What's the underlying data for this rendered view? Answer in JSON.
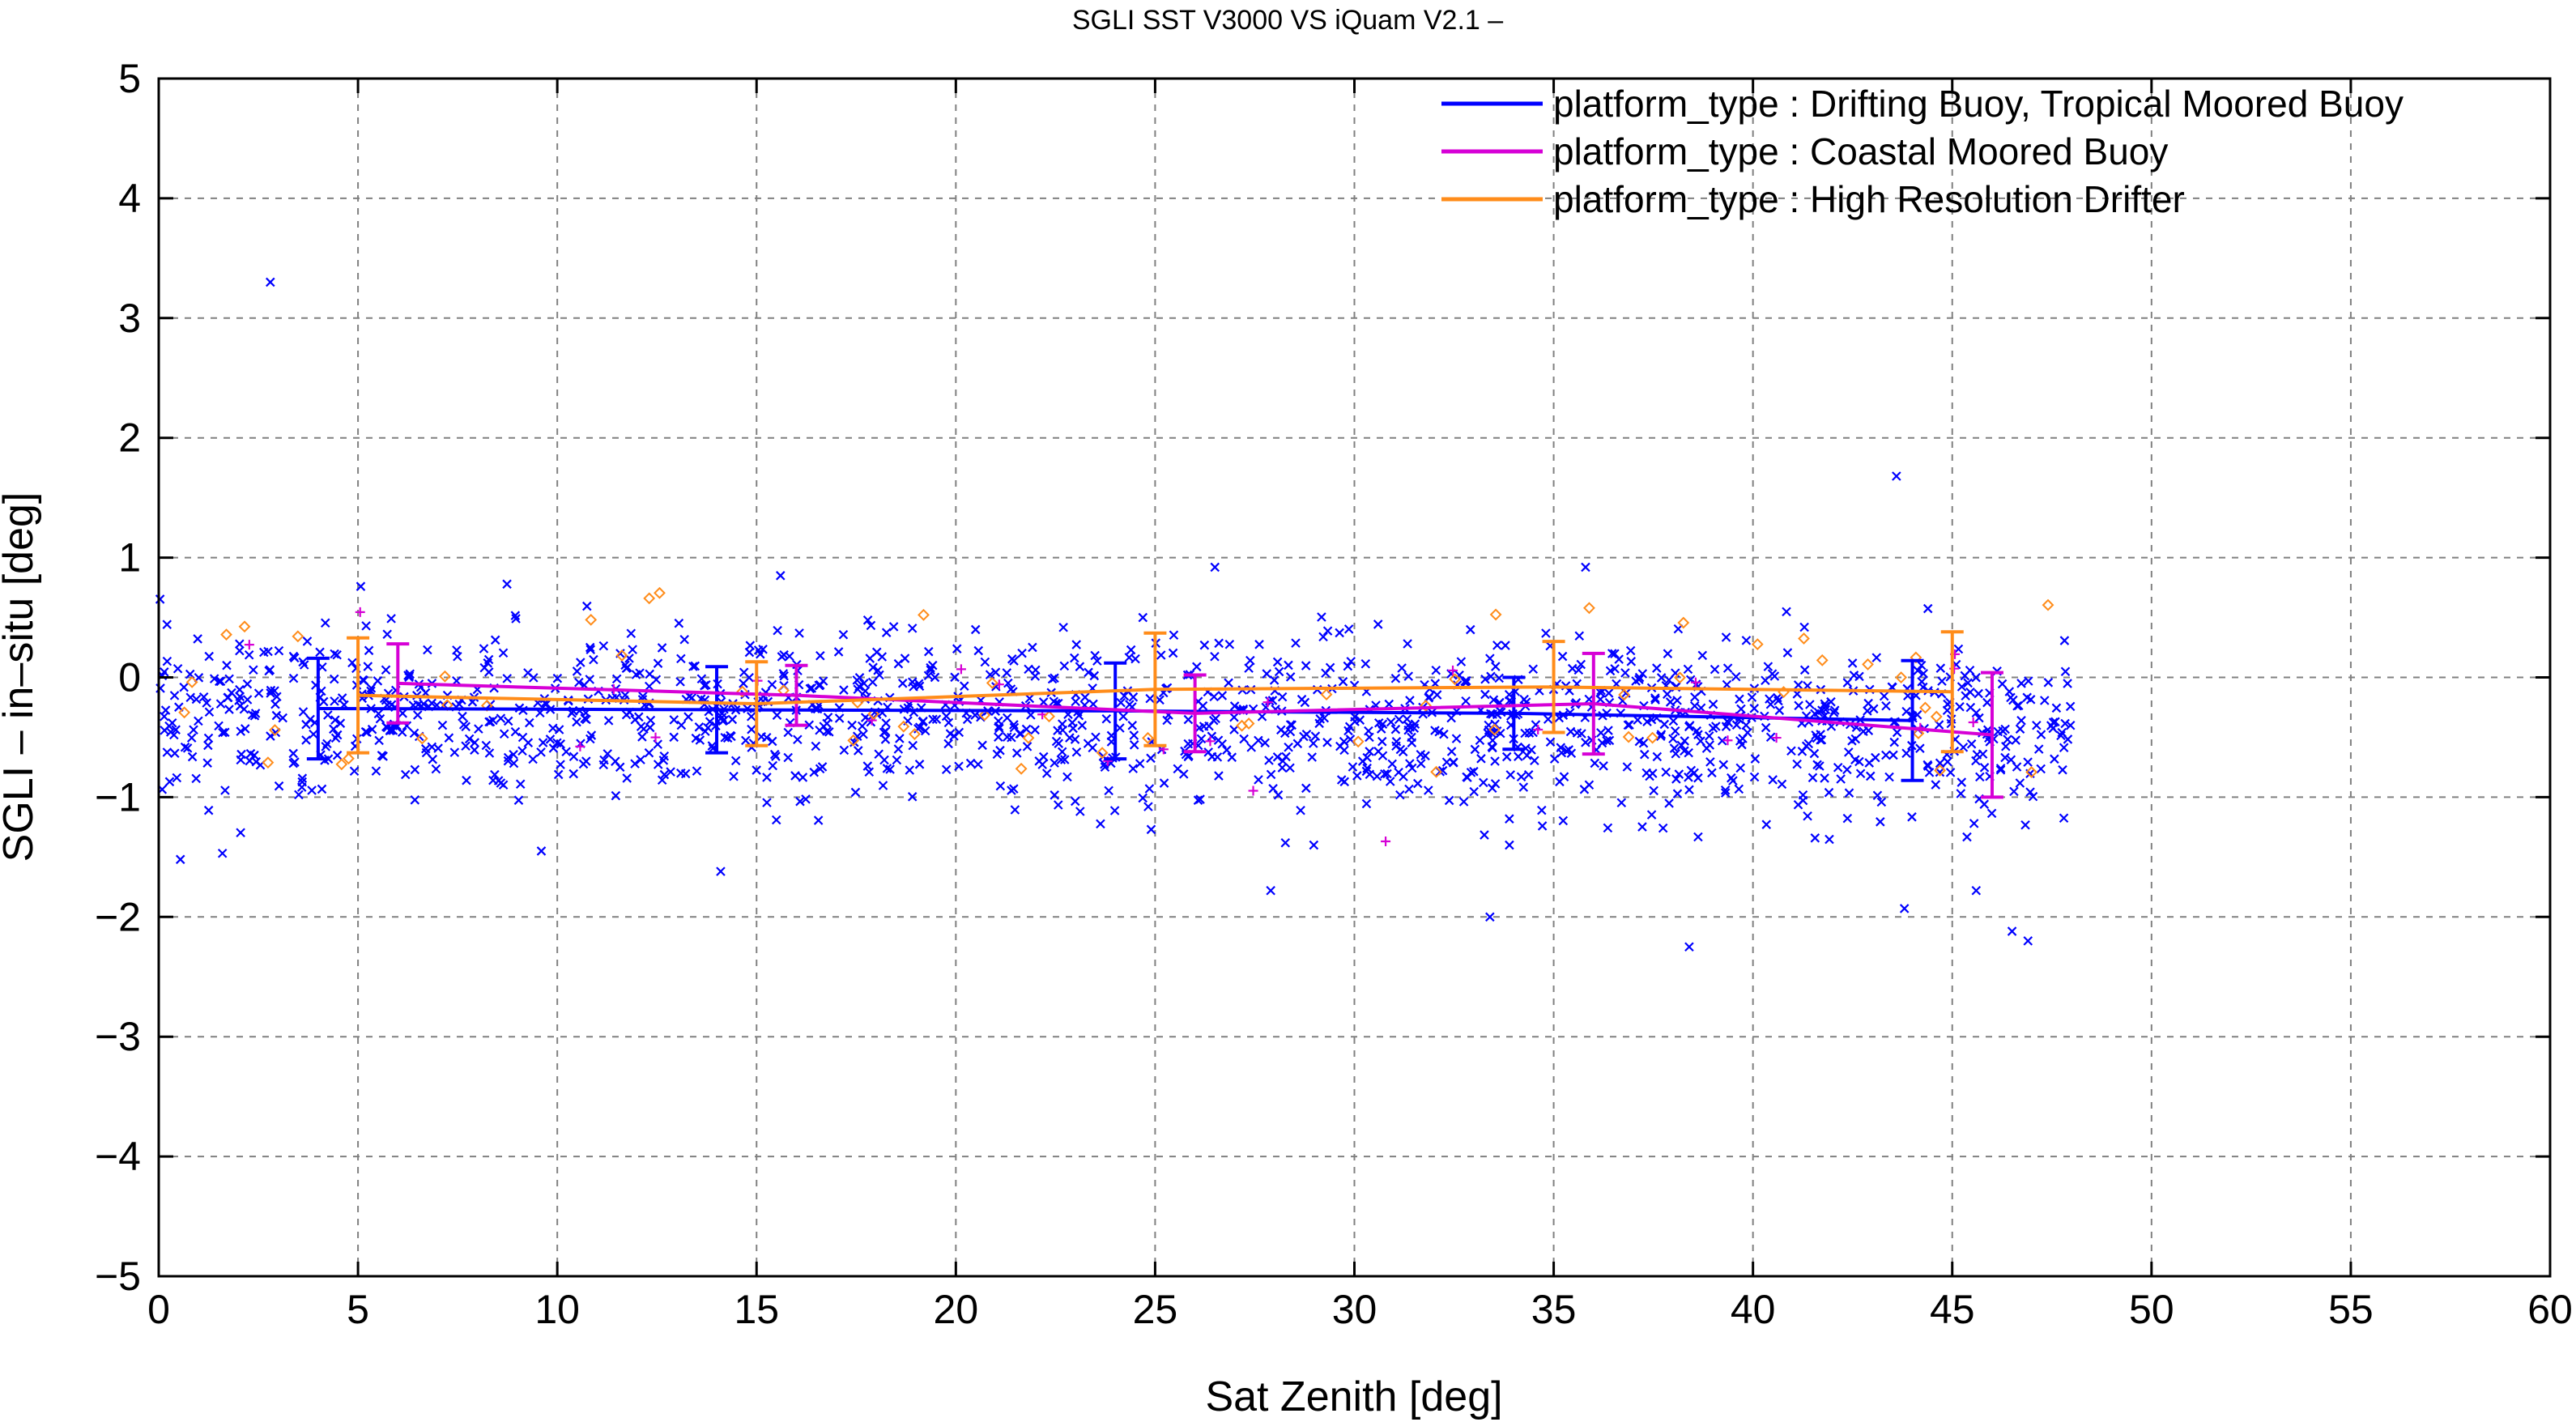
{
  "chart_data": {
    "type": "scatter",
    "title": "SGLI SST V3000 VS iQuam V2.1  –",
    "xlabel": "Sat Zenith [deg]",
    "ylabel": "SGLI – in–situ [deg]",
    "xlim": [
      0,
      60
    ],
    "ylim": [
      -5,
      5
    ],
    "x_ticks": [
      0,
      5,
      10,
      15,
      20,
      25,
      30,
      35,
      40,
      45,
      50,
      55,
      60
    ],
    "y_ticks": [
      -5,
      -4,
      -3,
      -2,
      -1,
      0,
      1,
      2,
      3,
      4,
      5
    ],
    "y_tick_labels": [
      "−5",
      "−4",
      "−3",
      "−2",
      "−1",
      "0",
      "1",
      "2",
      "3",
      "4",
      "5"
    ],
    "grid": true,
    "legend_position": "top-right",
    "series": [
      {
        "name": "platform_type : Drifting Buoy, Tropical Moored Buoy",
        "color": "#0000ff",
        "marker": "x",
        "mean_line": {
          "x": [
            4,
            14,
            24,
            34,
            44
          ],
          "y": [
            -0.26,
            -0.27,
            -0.28,
            -0.3,
            -0.36
          ],
          "std": [
            0.42,
            0.36,
            0.4,
            0.3,
            0.5
          ]
        },
        "scatter": {
          "x_range": [
            0,
            48
          ],
          "y_mean": -0.3,
          "y_spread": 0.35,
          "n_points": 1500
        },
        "outliers": [
          {
            "x": 2.8,
            "y": 3.3
          },
          {
            "x": 43.6,
            "y": 1.68
          },
          {
            "x": 38.4,
            "y": -2.25
          },
          {
            "x": 46.9,
            "y": -2.2
          },
          {
            "x": 14.1,
            "y": -1.62
          },
          {
            "x": 33.4,
            "y": -2.0
          },
          {
            "x": 27.9,
            "y": -1.78
          },
          {
            "x": 43.8,
            "y": -1.93
          },
          {
            "x": 46.5,
            "y": -2.12
          },
          {
            "x": 45.6,
            "y": -1.78
          },
          {
            "x": 9.6,
            "y": -1.45
          },
          {
            "x": 35.8,
            "y": 0.92
          },
          {
            "x": 15.6,
            "y": 0.85
          },
          {
            "x": 26.5,
            "y": 0.92
          }
        ]
      },
      {
        "name": "platform_type : Coastal Moored Buoy",
        "color": "#d600d6",
        "marker": "+",
        "mean_line": {
          "x": [
            6,
            16,
            26,
            36,
            46
          ],
          "y": [
            -0.05,
            -0.15,
            -0.3,
            -0.22,
            -0.48
          ],
          "std": [
            0.33,
            0.25,
            0.32,
            0.42,
            0.52
          ]
        },
        "scatter": {
          "x_range": [
            1,
            47.5
          ],
          "y_mean": -0.25,
          "y_spread": 0.35,
          "n_points": 25
        }
      },
      {
        "name": "platform_type : High Resolution Drifter",
        "color": "#ff8c1a",
        "marker": "diamond",
        "mean_line": {
          "x": [
            5,
            15,
            25,
            35,
            45
          ],
          "y": [
            -0.15,
            -0.22,
            -0.1,
            -0.08,
            -0.12
          ],
          "std": [
            0.48,
            0.35,
            0.47,
            0.38,
            0.5
          ]
        },
        "scatter": {
          "x_range": [
            0.5,
            47.5
          ],
          "y_mean": -0.15,
          "y_spread": 0.45,
          "n_points": 60
        }
      }
    ]
  }
}
